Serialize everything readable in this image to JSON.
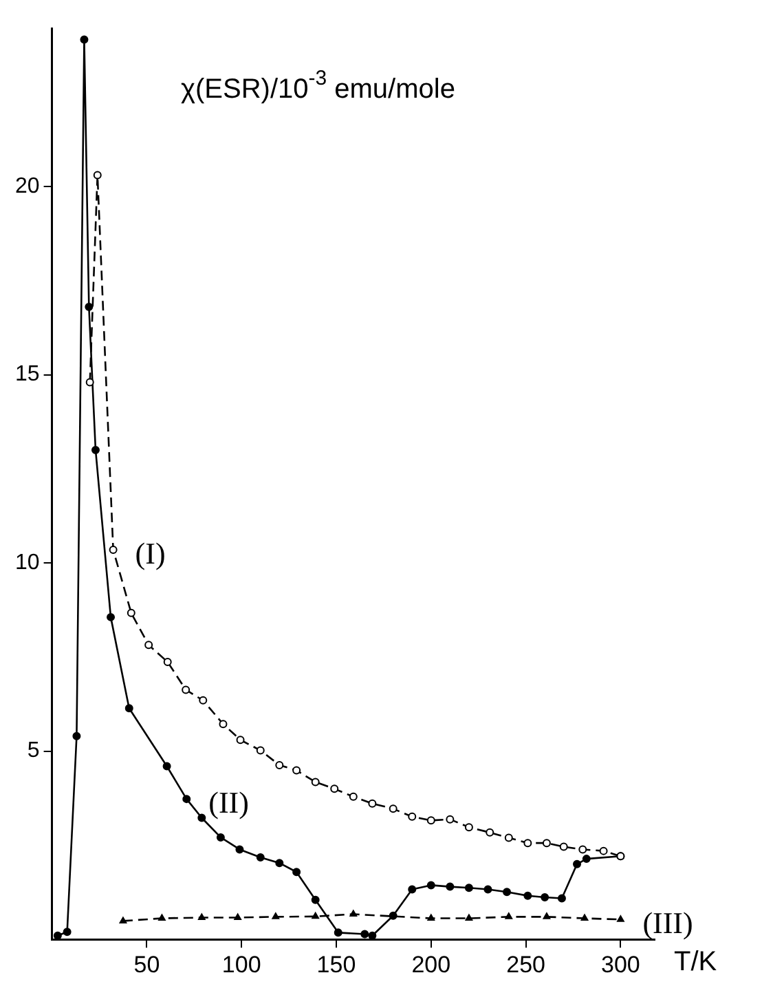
{
  "chart_data": {
    "type": "line",
    "ylabel": "χ(ESR)/10$^{-3}$ emu/mole",
    "xlabel": "T/K",
    "xlim": [
      0,
      318
    ],
    "ylim": [
      0,
      24.2
    ],
    "xticks": [
      50,
      100,
      150,
      200,
      250,
      300
    ],
    "yticks": [
      5,
      10,
      15,
      20
    ],
    "grid": false,
    "legend": false,
    "series": [
      {
        "color": "#000000",
        "marker": "circle",
        "line_style": "dashed",
        "x": [
          20,
          24,
          32.3,
          41.8,
          51,
          61,
          70.6,
          79.7,
          90.3,
          99.4,
          110,
          120,
          129,
          139,
          149,
          159,
          169,
          180,
          190,
          200,
          210,
          220,
          231,
          241,
          251,
          261,
          270,
          280,
          291,
          300
        ],
        "values": [
          14.8,
          20.3,
          10.35,
          8.67,
          7.82,
          7.37,
          6.63,
          6.35,
          5.72,
          5.3,
          5.02,
          4.63,
          4.49,
          4.18,
          4.0,
          3.79,
          3.61,
          3.47,
          3.26,
          3.16,
          3.19,
          2.98,
          2.84,
          2.7,
          2.56,
          2.56,
          2.46,
          2.39,
          2.35,
          2.21
        ]
      },
      {
        "color": "#000000",
        "marker": "circle",
        "line_style": "solid",
        "x": [
          3,
          8,
          13,
          17,
          19.5,
          23,
          31,
          40.7,
          60.6,
          71,
          79,
          89,
          99,
          110,
          120,
          129,
          139,
          151,
          165,
          169,
          180,
          190,
          200,
          210,
          220,
          230,
          240,
          251,
          260,
          269,
          277,
          282,
          300
        ],
        "values": [
          0.1,
          0.2,
          5.4,
          23.9,
          16.8,
          13,
          8.56,
          6.14,
          4.6,
          3.73,
          3.23,
          2.71,
          2.39,
          2.18,
          2.03,
          1.79,
          1.05,
          0.18,
          0.14,
          0.1,
          0.63,
          1.33,
          1.44,
          1.4,
          1.37,
          1.33,
          1.26,
          1.16,
          1.12,
          1.09,
          2.0,
          2.14,
          2.21
        ]
      },
      {
        "color": "#000000",
        "marker": "triangle",
        "line_style": "dashed",
        "x": [
          37.5,
          58,
          79,
          98,
          118,
          139,
          159,
          200,
          220,
          241,
          261,
          281,
          300
        ],
        "values": [
          0.49,
          0.56,
          0.58,
          0.58,
          0.6,
          0.61,
          0.67,
          0.56,
          0.56,
          0.6,
          0.6,
          0.56,
          0.53
        ]
      }
    ],
    "annotations": [
      {
        "text": "(I)",
        "x": 32.3,
        "y": 10.35
      },
      {
        "text": "(II)",
        "x": 71,
        "y": 3.73
      },
      {
        "text": "(III)",
        "x": 300,
        "y": 0.53
      }
    ]
  }
}
